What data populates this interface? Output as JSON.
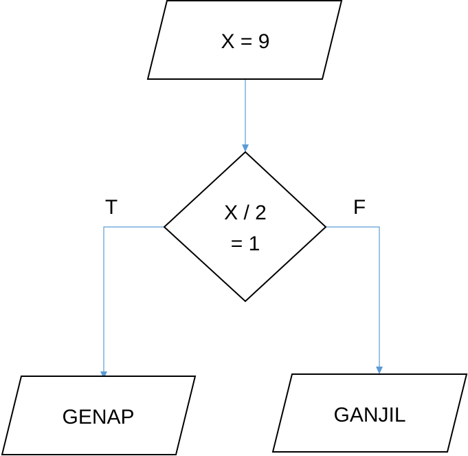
{
  "nodes": {
    "start": {
      "shape": "parallelogram",
      "text": "X = 9"
    },
    "decision": {
      "shape": "diamond",
      "line1": "X / 2",
      "line2": "= 1"
    },
    "true_output": {
      "shape": "parallelogram",
      "text": "GENAP"
    },
    "false_output": {
      "shape": "parallelogram",
      "text": "GANJIL"
    }
  },
  "edges": {
    "true_label": "T",
    "false_label": "F"
  },
  "colors": {
    "connector": "#5b9bd5",
    "shape_stroke": "#000000",
    "background": "#ffffff"
  }
}
